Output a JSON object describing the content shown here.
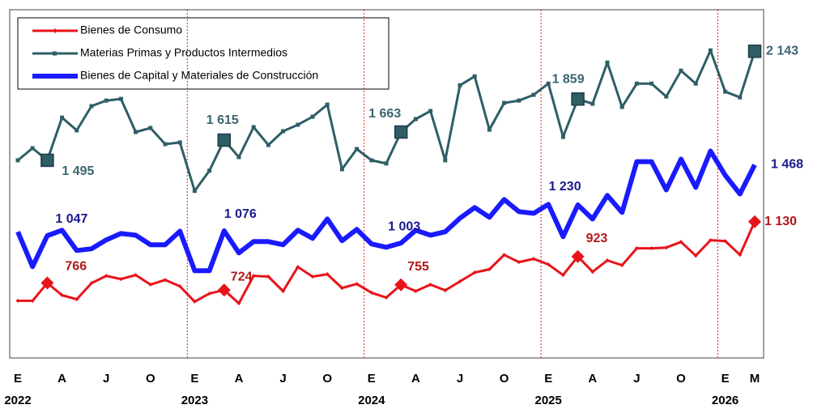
{
  "chart_data": {
    "type": "line",
    "categories": [
      "E",
      null,
      null,
      "A",
      null,
      null,
      "J",
      null,
      null,
      "O",
      null,
      null,
      "E",
      null,
      null,
      "A",
      null,
      null,
      "J",
      null,
      null,
      "O",
      null,
      null,
      "E",
      null,
      null,
      "A",
      null,
      null,
      "J",
      null,
      null,
      "O",
      null,
      null,
      "E",
      null,
      null,
      "A",
      null,
      null,
      "J",
      null,
      null,
      "O",
      null,
      null,
      "E",
      null,
      "M"
    ],
    "years": [
      "2022",
      "2023",
      "2024",
      "2025",
      "2026"
    ],
    "ylim": [
      320,
      2390
    ],
    "grid": false,
    "legend": "upper left",
    "series": [
      {
        "name": "Bienes de Consumo",
        "color": "#e8141a",
        "label_color": "#b0171c",
        "marker": "diamond",
        "values": [
          660,
          660,
          766,
          693,
          669,
          765,
          808,
          789,
          813,
          756,
          784,
          746,
          655,
          703,
          724,
          645,
          808,
          804,
          717,
          861,
          804,
          818,
          736,
          760,
          708,
          679,
          755,
          717,
          756,
          722,
          775,
          828,
          847,
          933,
          890,
          909,
          876,
          813,
          923,
          832,
          900,
          871,
          972,
          972,
          976,
          1010,
          928,
          1020,
          1015,
          933,
          1130
        ],
        "value_labels": [
          null,
          null,
          "766",
          null,
          null,
          null,
          null,
          null,
          null,
          null,
          null,
          null,
          null,
          null,
          "724",
          null,
          null,
          null,
          null,
          null,
          null,
          null,
          null,
          null,
          null,
          null,
          "755",
          null,
          null,
          null,
          null,
          null,
          null,
          null,
          null,
          null,
          null,
          null,
          "923",
          null,
          null,
          null,
          null,
          null,
          null,
          null,
          null,
          null,
          null,
          null,
          "1 130"
        ]
      },
      {
        "name": "Materias Primas y Productos Intermedios",
        "color": "#2e5e66",
        "label_color": "#3b6670",
        "marker": "square",
        "values": [
          1495,
          1567,
          1495,
          1749,
          1673,
          1817,
          1850,
          1860,
          1663,
          1687,
          1591,
          1601,
          1313,
          1433,
          1615,
          1514,
          1692,
          1586,
          1668,
          1706,
          1754,
          1826,
          1442,
          1562,
          1495,
          1476,
          1663,
          1740,
          1788,
          1495,
          1941,
          1994,
          1677,
          1836,
          1850,
          1884,
          1951,
          1634,
          1859,
          1831,
          2076,
          1812,
          1951,
          1951,
          1874,
          2028,
          1951,
          2148,
          1903,
          1869,
          2143
        ],
        "value_labels": [
          null,
          null,
          "1 495",
          null,
          null,
          null,
          null,
          null,
          null,
          null,
          null,
          null,
          null,
          null,
          "1 615",
          null,
          null,
          null,
          null,
          null,
          null,
          null,
          null,
          null,
          null,
          null,
          "1 663",
          null,
          null,
          null,
          null,
          null,
          null,
          null,
          null,
          null,
          null,
          null,
          "1 859",
          null,
          null,
          null,
          null,
          null,
          null,
          null,
          null,
          null,
          null,
          null,
          "2 143"
        ]
      },
      {
        "name": "Bienes de Capital y Materiales de Construcción",
        "color": "#1a1aff",
        "label_color": "#1a1a8c",
        "marker": "none",
        "values": [
          1070,
          863,
          1047,
          1079,
          959,
          969,
          1022,
          1060,
          1050,
          993,
          993,
          1074,
          839,
          839,
          1076,
          945,
          1012,
          1012,
          993,
          1079,
          1031,
          1146,
          1017,
          1084,
          998,
          978,
          1003,
          1079,
          1050,
          1070,
          1151,
          1214,
          1156,
          1262,
          1190,
          1180,
          1233,
          1041,
          1230,
          1146,
          1286,
          1185,
          1487,
          1487,
          1319,
          1502,
          1334,
          1550,
          1406,
          1295,
          1468
        ],
        "value_labels": [
          null,
          null,
          "1 047",
          null,
          null,
          null,
          null,
          null,
          null,
          null,
          null,
          null,
          null,
          null,
          "1 076",
          null,
          null,
          null,
          null,
          null,
          null,
          null,
          null,
          null,
          null,
          null,
          "1 003",
          null,
          null,
          null,
          null,
          null,
          null,
          null,
          null,
          null,
          null,
          null,
          "1 230",
          null,
          null,
          null,
          null,
          null,
          null,
          null,
          null,
          null,
          null,
          null,
          "1 468"
        ]
      }
    ]
  }
}
